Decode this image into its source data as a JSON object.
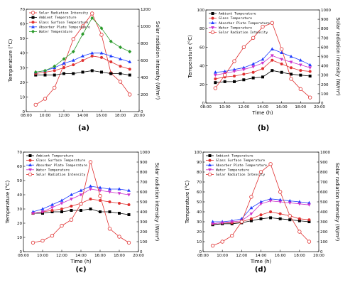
{
  "chart_data": [
    {
      "type": "line",
      "panel_label": "(a)",
      "xlabel": "",
      "ylabel": "Temperature (°C)",
      "y2label": "Solar radiation intensity (W/m²)",
      "xlim": [
        "08:00",
        "20:00"
      ],
      "xticks": [
        "08:00",
        "10:00",
        "12:00",
        "14:00",
        "16:00",
        "18:00",
        "20:00"
      ],
      "ylim": [
        0,
        70
      ],
      "yticks": [
        0,
        10,
        20,
        30,
        40,
        50,
        60,
        70
      ],
      "y2lim": [
        0,
        1200
      ],
      "y2ticks": [
        0,
        200,
        400,
        600,
        800,
        1000,
        1200
      ],
      "legend_position": "top-left",
      "x": [
        "09:00",
        "10:00",
        "11:00",
        "12:00",
        "13:00",
        "14:00",
        "15:00",
        "16:00",
        "17:00",
        "18:00",
        "19:00"
      ],
      "series": [
        {
          "name": "Solar Radiation Intensity",
          "axis": "right",
          "color": "#e03030",
          "marker": "circle-open",
          "values": [
            80,
            150,
            280,
            550,
            850,
            1000,
            1150,
            900,
            450,
            350,
            200
          ]
        },
        {
          "name": "Ambient Temperature",
          "axis": "left",
          "color": "#000000",
          "marker": "square",
          "values": [
            25,
            25,
            25,
            26,
            26,
            27,
            28,
            27,
            26,
            26,
            25
          ]
        },
        {
          "name": "Glass Surface Temperature",
          "axis": "left",
          "color": "#e03030",
          "marker": "circle",
          "values": [
            26,
            27,
            28,
            30,
            32,
            35,
            38,
            37,
            34,
            31,
            29
          ]
        },
        {
          "name": "Absorber Plate Temperature",
          "axis": "left",
          "color": "#1f3cff",
          "marker": "triangle",
          "values": [
            27,
            28,
            30,
            33,
            35,
            38,
            40,
            40,
            38,
            36,
            34
          ]
        },
        {
          "name": "Water Temperature",
          "axis": "left",
          "color": "#2a9a2a",
          "marker": "diamond",
          "values": [
            27,
            28,
            31,
            36,
            41,
            53,
            64,
            57,
            48,
            44,
            41
          ]
        }
      ]
    },
    {
      "type": "line",
      "panel_label": "(b)",
      "xlabel": "Time (h)",
      "ylabel": "Temperature (°C)",
      "y2label": "Solar radiation intensity (W/m²)",
      "xlim": [
        "08:00",
        "20:00"
      ],
      "xticks": [
        "08:00",
        "10:00",
        "12:00",
        "14:00",
        "16:00",
        "18:00",
        "20:00"
      ],
      "ylim": [
        0,
        100
      ],
      "yticks": [
        0,
        20,
        40,
        60,
        80,
        100
      ],
      "y2lim": [
        0,
        1000
      ],
      "y2ticks": [
        0,
        100,
        200,
        300,
        400,
        500,
        600,
        700,
        800,
        900,
        1000
      ],
      "legend_position": "top-left",
      "x": [
        "09:00",
        "10:00",
        "11:00",
        "12:00",
        "13:00",
        "14:00",
        "15:00",
        "16:00",
        "17:00",
        "18:00",
        "19:00"
      ],
      "series": [
        {
          "name": "Ambient Temperature",
          "axis": "left",
          "color": "#000000",
          "marker": "square",
          "values": [
            22,
            23,
            23,
            25,
            27,
            28,
            35,
            33,
            31,
            30,
            29
          ]
        },
        {
          "name": "Glass Temperature",
          "axis": "left",
          "color": "#e03030",
          "marker": "circle",
          "values": [
            26,
            28,
            29,
            31,
            33,
            37,
            46,
            42,
            38,
            35,
            34
          ]
        },
        {
          "name": "Absorber Plate Temperature",
          "axis": "left",
          "color": "#1f3cff",
          "marker": "triangle",
          "values": [
            33,
            34,
            36,
            38,
            42,
            47,
            58,
            54,
            50,
            46,
            41
          ]
        },
        {
          "name": "Water Temperature",
          "axis": "left",
          "color": "#cc33cc",
          "marker": "triangle-down",
          "values": [
            30,
            32,
            34,
            36,
            39,
            43,
            51,
            47,
            44,
            41,
            38
          ]
        },
        {
          "name": "Solar Radiation Intensity",
          "axis": "right",
          "color": "#e03030",
          "marker": "circle-open",
          "values": [
            160,
            300,
            450,
            600,
            700,
            820,
            860,
            580,
            260,
            150,
            60
          ]
        }
      ]
    },
    {
      "type": "line",
      "panel_label": "(c)",
      "xlabel": "Time (h)",
      "ylabel": "Temperature (°C)",
      "y2label": "Solar radiation intensity (W/m²)",
      "xlim": [
        "08:00",
        "20:00"
      ],
      "xticks": [
        "08:00",
        "10:00",
        "12:00",
        "14:00",
        "16:00",
        "18:00",
        "20:00"
      ],
      "ylim": [
        0,
        70
      ],
      "yticks": [
        0,
        10,
        20,
        30,
        40,
        50,
        60,
        70
      ],
      "y2lim": [
        0,
        1000
      ],
      "y2ticks": [
        0,
        100,
        200,
        300,
        400,
        500,
        600,
        700,
        800,
        900,
        1000
      ],
      "legend_position": "top-left",
      "x": [
        "09:00",
        "10:00",
        "11:00",
        "12:00",
        "13:00",
        "14:00",
        "15:00",
        "16:00",
        "17:00",
        "18:00",
        "19:00"
      ],
      "series": [
        {
          "name": "Ambient Temperature",
          "axis": "left",
          "color": "#000000",
          "marker": "square",
          "values": [
            27,
            27,
            28,
            28,
            29,
            29,
            30,
            28,
            28,
            27,
            26
          ]
        },
        {
          "name": "Glass Surface Temperature",
          "axis": "left",
          "color": "#e03030",
          "marker": "circle",
          "values": [
            27,
            28,
            29,
            30,
            32,
            34,
            37,
            36,
            35,
            34,
            33
          ]
        },
        {
          "name": "Absorber Plate Temperature",
          "axis": "left",
          "color": "#1f3cff",
          "marker": "triangle",
          "values": [
            28,
            30,
            33,
            36,
            40,
            43,
            46,
            45,
            44,
            44,
            43
          ]
        },
        {
          "name": "Water Temperature",
          "axis": "left",
          "color": "#cc33cc",
          "marker": "triangle-down",
          "values": [
            27,
            28,
            31,
            34,
            37,
            40,
            44,
            43,
            42,
            41,
            40
          ]
        },
        {
          "name": "Solar Radiation Intensity",
          "axis": "right",
          "color": "#e03030",
          "marker": "circle-open",
          "values": [
            90,
            110,
            160,
            260,
            320,
            480,
            900,
            560,
            230,
            150,
            90
          ]
        }
      ]
    },
    {
      "type": "line",
      "panel_label": "(d)",
      "xlabel": "Time (h)",
      "ylabel": "Temperature (°C)",
      "y2label": "Solar radiation intensity (W/m²)",
      "xlim": [
        "08:00",
        "20:00"
      ],
      "xticks": [
        "08:00",
        "10:00",
        "12:00",
        "14:00",
        "16:00",
        "18:00",
        "20:00"
      ],
      "ylim": [
        0,
        100
      ],
      "yticks": [
        0,
        10,
        20,
        30,
        40,
        50,
        60,
        70,
        80,
        90,
        100
      ],
      "y2lim": [
        0,
        1000
      ],
      "y2ticks": [
        0,
        100,
        200,
        300,
        400,
        500,
        600,
        700,
        800,
        900,
        1000
      ],
      "legend_position": "top-left",
      "x": [
        "09:00",
        "10:00",
        "11:00",
        "12:00",
        "13:00",
        "14:00",
        "15:00",
        "16:00",
        "17:00",
        "18:00",
        "19:00"
      ],
      "series": [
        {
          "name": "Ambient Temperature",
          "axis": "left",
          "color": "#000000",
          "marker": "square",
          "values": [
            27,
            28,
            28,
            29,
            31,
            33,
            34,
            33,
            32,
            31,
            30
          ]
        },
        {
          "name": "Glass Surface Temperature",
          "axis": "left",
          "color": "#e03030",
          "marker": "circle",
          "values": [
            28,
            29,
            29,
            30,
            33,
            37,
            40,
            38,
            36,
            33,
            32
          ]
        },
        {
          "name": "Absorber Plate Temperature",
          "axis": "left",
          "color": "#1f3cff",
          "marker": "triangle",
          "values": [
            30,
            30,
            31,
            33,
            44,
            50,
            53,
            52,
            51,
            50,
            49
          ]
        },
        {
          "name": "Water Temperature",
          "axis": "left",
          "color": "#cc33cc",
          "marker": "triangle-down",
          "values": [
            28,
            29,
            30,
            31,
            38,
            48,
            51,
            50,
            49,
            48,
            47
          ]
        },
        {
          "name": "Solar Radiation Intensity",
          "axis": "right",
          "color": "#e03030",
          "marker": "circle-open",
          "values": [
            60,
            100,
            160,
            300,
            550,
            800,
            880,
            600,
            360,
            200,
            100
          ]
        }
      ]
    }
  ]
}
